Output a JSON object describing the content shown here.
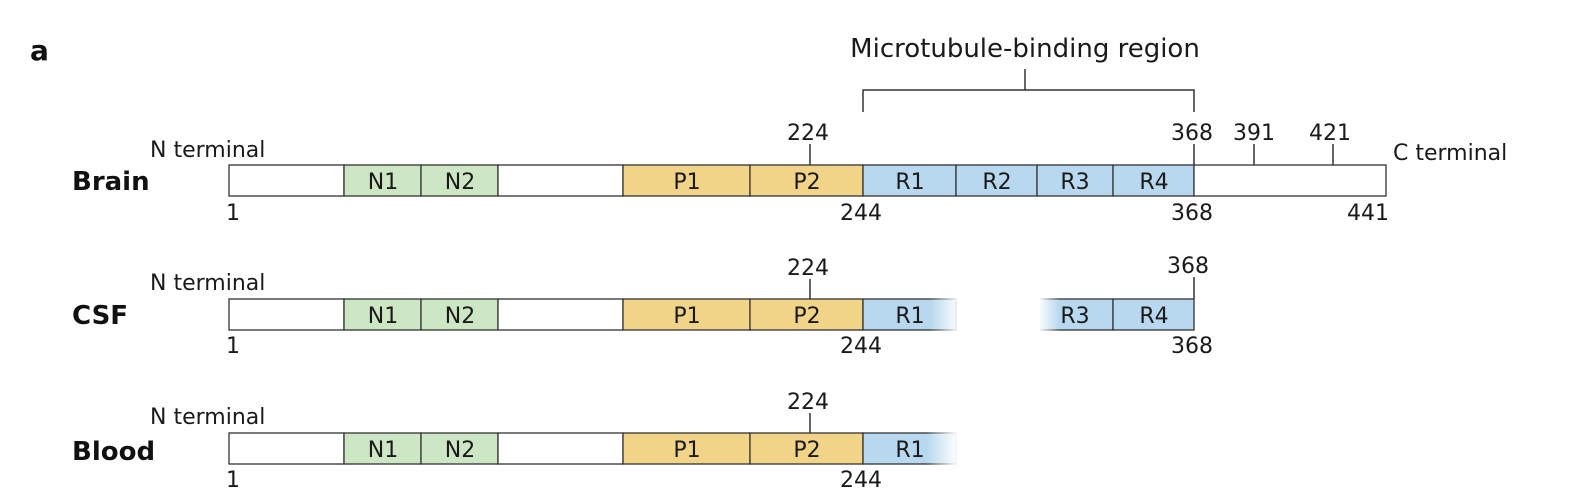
{
  "panel_label": "a",
  "region_label": "Microtubule-binding region",
  "domain_colors": {
    "N": "#cde6c4",
    "P": "#f2d489",
    "R": "#b7d8ef",
    "plain": "#ffffff",
    "outline": "#333333"
  },
  "n_terminal_label": "N terminal",
  "c_terminal_label": "C terminal",
  "tracks": [
    {
      "name": "Brain",
      "domains": [
        {
          "label": "",
          "type": "plain"
        },
        {
          "label": "N1",
          "type": "N"
        },
        {
          "label": "N2",
          "type": "N"
        },
        {
          "label": "",
          "type": "plain"
        },
        {
          "label": "P1",
          "type": "P"
        },
        {
          "label": "P2",
          "type": "P"
        },
        {
          "label": "R1",
          "type": "R"
        },
        {
          "label": "R2",
          "type": "R"
        },
        {
          "label": "R3",
          "type": "R"
        },
        {
          "label": "R4",
          "type": "R"
        },
        {
          "label": "",
          "type": "plain"
        }
      ],
      "top_markers": [
        "224",
        "368",
        "391",
        "421"
      ],
      "bottom_labels": [
        "1",
        "244",
        "368",
        "441"
      ],
      "c_terminal": true
    },
    {
      "name": "CSF",
      "domains": [
        {
          "label": "",
          "type": "plain"
        },
        {
          "label": "N1",
          "type": "N"
        },
        {
          "label": "N2",
          "type": "N"
        },
        {
          "label": "",
          "type": "plain"
        },
        {
          "label": "P1",
          "type": "P"
        },
        {
          "label": "P2",
          "type": "P"
        },
        {
          "label": "R1",
          "type": "R"
        },
        {
          "label": "",
          "type": "gap"
        },
        {
          "label": "R3",
          "type": "R"
        },
        {
          "label": "R4",
          "type": "R"
        }
      ],
      "top_markers": [
        "224",
        "368"
      ],
      "bottom_labels": [
        "1",
        "244",
        "368"
      ],
      "c_terminal": false
    },
    {
      "name": "Blood",
      "domains": [
        {
          "label": "",
          "type": "plain"
        },
        {
          "label": "N1",
          "type": "N"
        },
        {
          "label": "N2",
          "type": "N"
        },
        {
          "label": "",
          "type": "plain"
        },
        {
          "label": "P1",
          "type": "P"
        },
        {
          "label": "P2",
          "type": "P"
        },
        {
          "label": "R1",
          "type": "R"
        }
      ],
      "top_markers": [
        "224"
      ],
      "bottom_labels": [
        "1",
        "244"
      ],
      "c_terminal": false
    }
  ]
}
